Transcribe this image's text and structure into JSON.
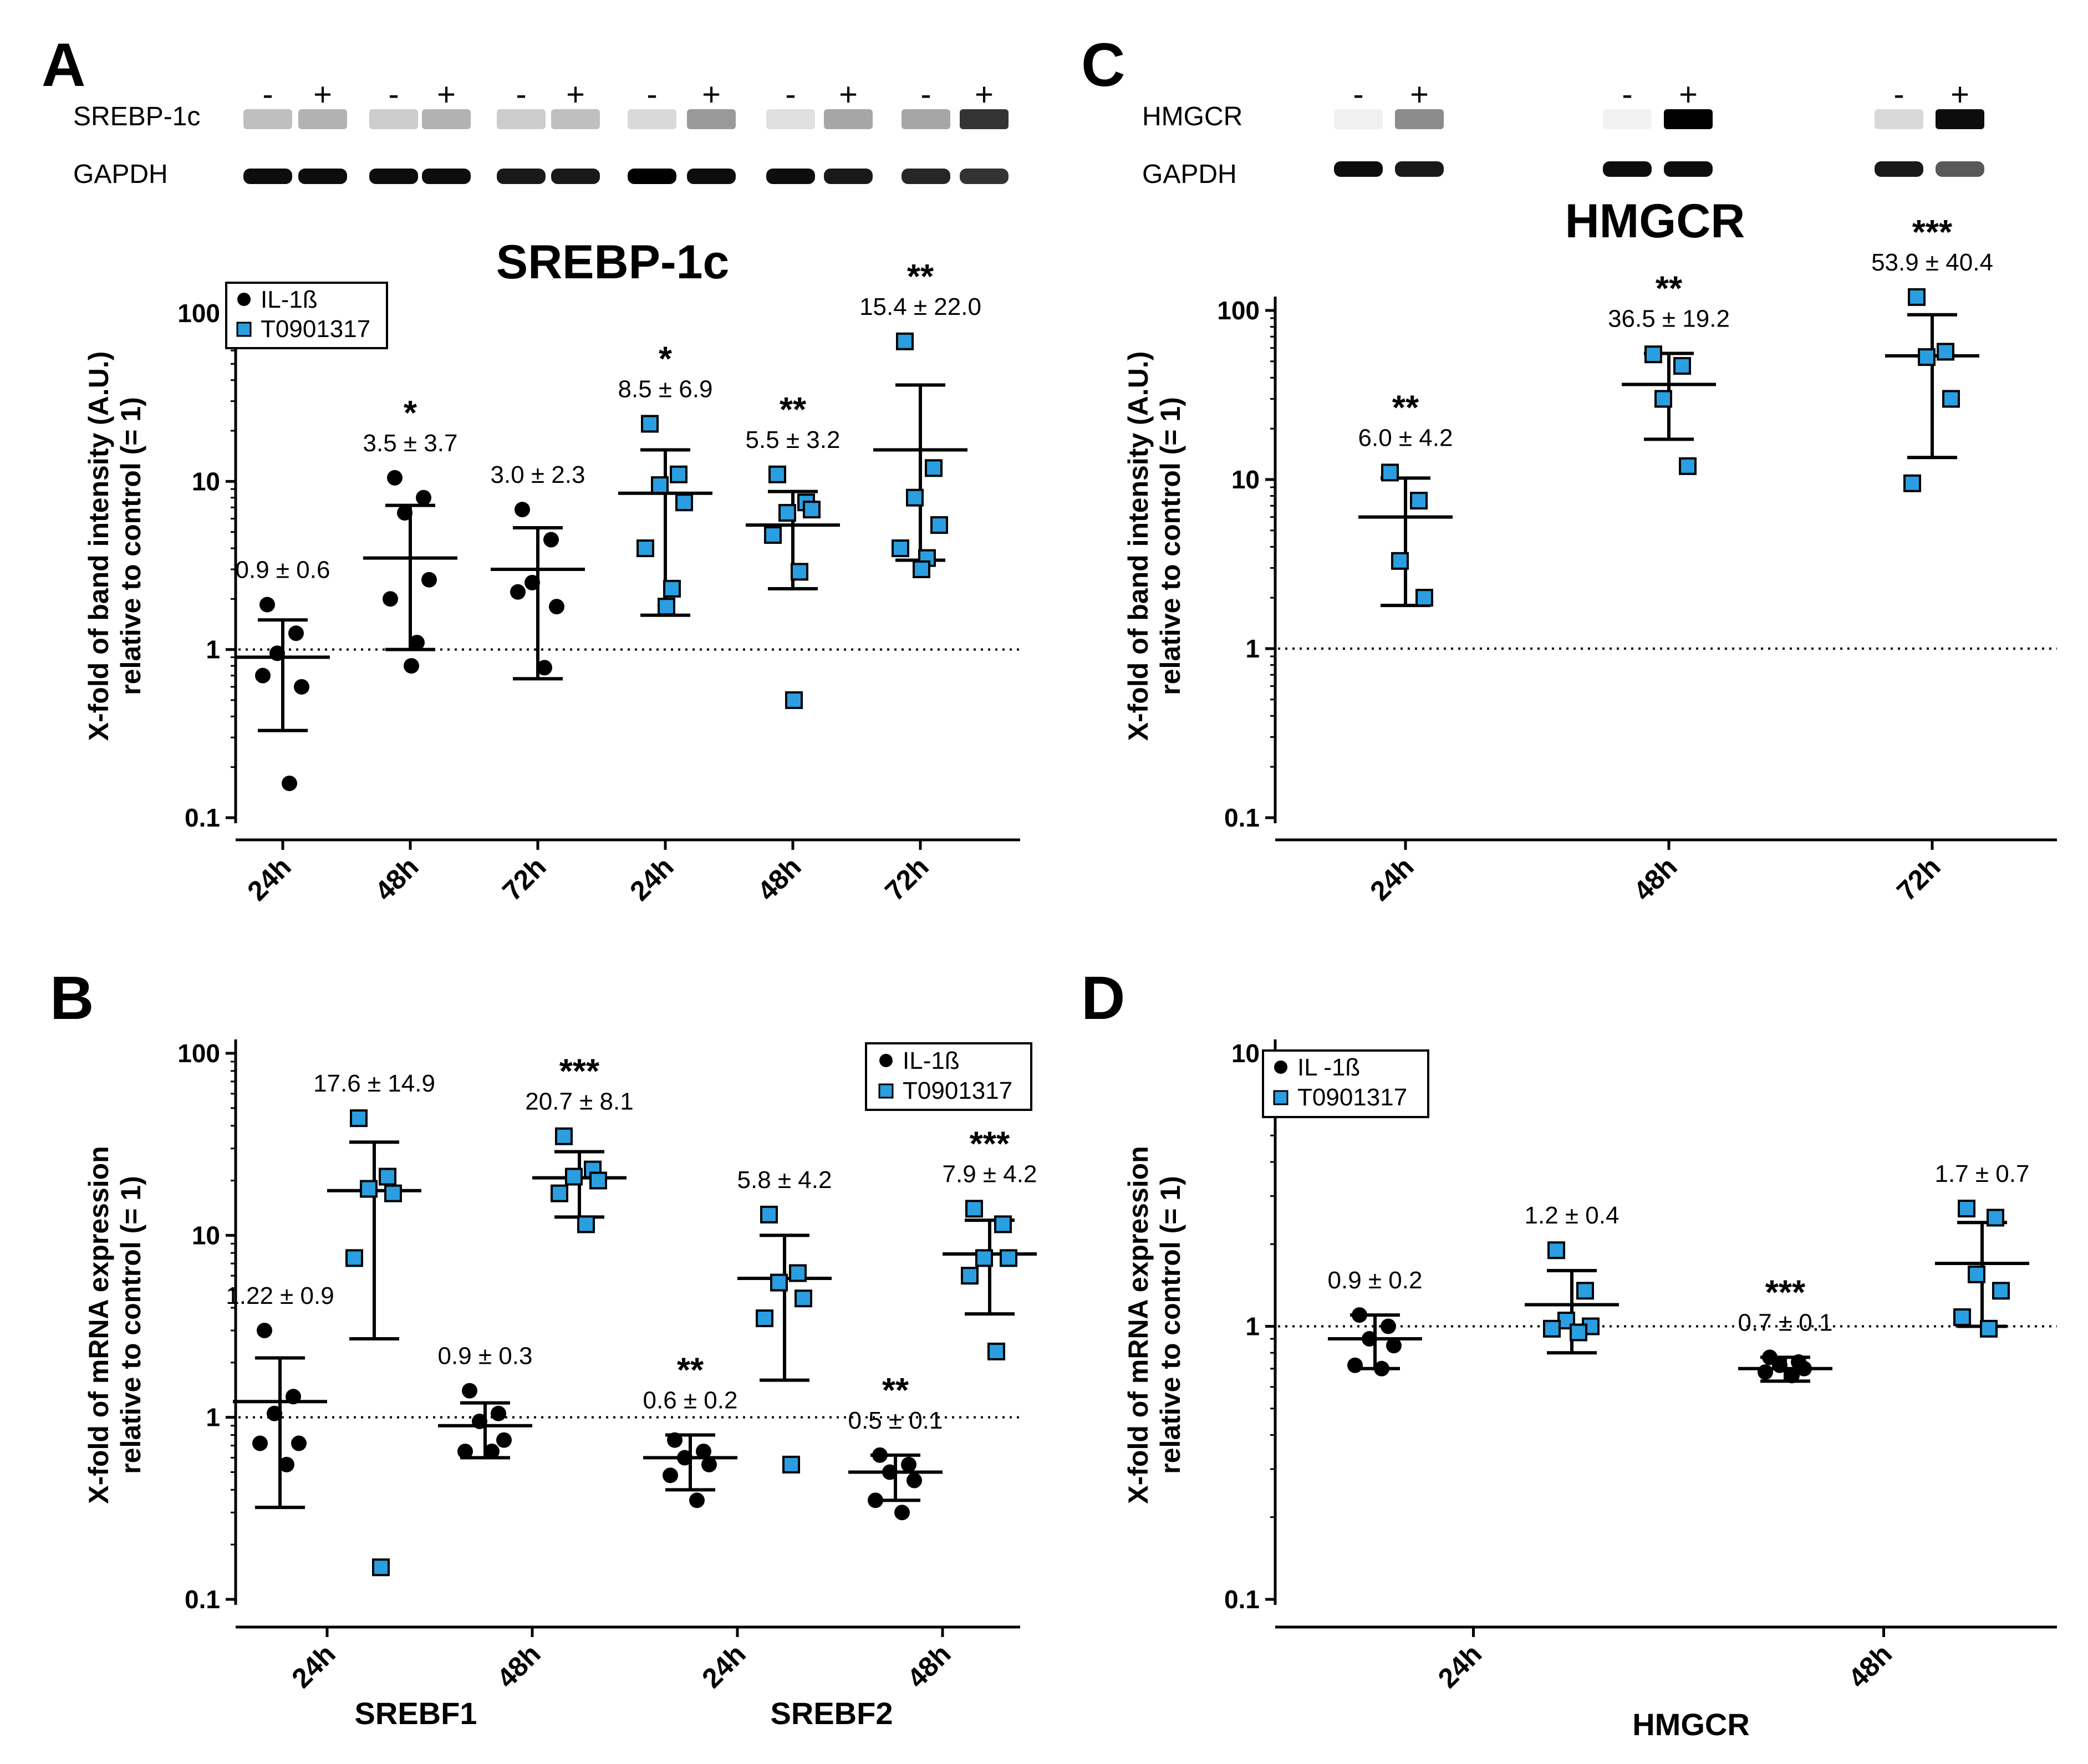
{
  "colors": {
    "il1b": "#000000",
    "t09": "#2a9ee0",
    "ink": "#000000"
  },
  "legend": {
    "il1b": "IL-1ß",
    "t09": "T0901317",
    "il1b_d": "IL -1ß"
  },
  "panels": {
    "A": "A",
    "B": "B",
    "C": "C",
    "D": "D"
  },
  "blotA": {
    "target": "SREBP-1c",
    "loading": "GAPDH",
    "lane_marks": [
      "-",
      "+",
      "-",
      "+",
      "-",
      "+",
      "-",
      "+",
      "-",
      "+",
      "-",
      "+"
    ]
  },
  "blotC": {
    "target": "HMGCR",
    "loading": "GAPDH",
    "lane_marks": [
      "-",
      "+",
      "-",
      "+",
      "-",
      "+"
    ]
  },
  "chart_data": [
    {
      "panel": "A",
      "type": "scatter",
      "title": "SREBP-1c",
      "ylabel_line1": "X-fold of band intensity (A.U.)",
      "ylabel_line2": "relative to control (= 1)",
      "yscale": "log",
      "ylim": [
        0.1,
        100
      ],
      "yticks": [
        "0.1",
        "1",
        "10",
        "100"
      ],
      "reference_line": 1,
      "legend_position": "top-left",
      "categories": [
        "24h",
        "48h",
        "72h",
        "24h",
        "48h",
        "72h"
      ],
      "groups": [
        {
          "name": "IL-1ß",
          "series": "il1b",
          "x": 0,
          "points": [
            1.85,
            1.25,
            0.95,
            0.6,
            0.7,
            0.16
          ],
          "mean": 0.9,
          "sd_low": 0.33,
          "sd_high": 1.5,
          "annotation": "0.9 ± 0.6",
          "stars": ""
        },
        {
          "name": "IL-1ß",
          "series": "il1b",
          "x": 1,
          "points": [
            10.5,
            8.0,
            6.5,
            2.6,
            2.0,
            1.1,
            0.8
          ],
          "mean": 3.5,
          "sd_low": 1.0,
          "sd_high": 7.2,
          "annotation": "3.5 ± 3.7",
          "stars": "*"
        },
        {
          "name": "IL-1ß",
          "series": "il1b",
          "x": 2,
          "points": [
            6.8,
            4.5,
            2.5,
            1.8,
            2.2,
            0.78
          ],
          "mean": 3.0,
          "sd_low": 0.67,
          "sd_high": 5.3,
          "annotation": "3.0 ± 2.3",
          "stars": ""
        },
        {
          "name": "T0901317",
          "series": "t09",
          "x": 3,
          "points": [
            22,
            11,
            9.5,
            7.5,
            4.0,
            2.3,
            1.8
          ],
          "mean": 8.5,
          "sd_low": 1.6,
          "sd_high": 15.4,
          "annotation": "8.5 ± 6.9",
          "stars": "*"
        },
        {
          "name": "T0901317",
          "series": "t09",
          "x": 4,
          "points": [
            11,
            7.5,
            6.5,
            6.8,
            4.8,
            2.9,
            0.5
          ],
          "mean": 5.5,
          "sd_low": 2.3,
          "sd_high": 8.7,
          "annotation": "5.5 ± 3.2",
          "stars": "**"
        },
        {
          "name": "T0901317",
          "series": "t09",
          "x": 5,
          "points": [
            68,
            12,
            8.0,
            5.5,
            4.0,
            3.5,
            3.0
          ],
          "mean": 15.4,
          "sd_low": 3.4,
          "sd_high": 37.4,
          "annotation": "15.4 ± 22.0",
          "stars": "**"
        }
      ]
    },
    {
      "panel": "B",
      "type": "scatter",
      "ylabel_line1": "X-fold of mRNA expression",
      "ylabel_line2": "relative to control (= 1)",
      "yscale": "log",
      "ylim": [
        0.1,
        100
      ],
      "yticks": [
        "0.1",
        "1",
        "10",
        "100"
      ],
      "reference_line": 1,
      "legend_position": "top-right",
      "categories": [
        "24h",
        "48h",
        "24h",
        "48h"
      ],
      "category_groups": [
        "SREBF1",
        "SREBF2"
      ],
      "groups": [
        {
          "name": "IL-1ß",
          "series": "il1b",
          "x": 0,
          "points": [
            3.0,
            1.3,
            1.05,
            0.72,
            0.72,
            0.55
          ],
          "mean": 1.22,
          "sd_low": 0.32,
          "sd_high": 2.12,
          "annotation": "1.22 ± 0.9",
          "stars": ""
        },
        {
          "name": "T0901317",
          "series": "t09",
          "x": 0.5,
          "points": [
            44,
            21,
            18,
            17,
            7.5,
            0.15
          ],
          "mean": 17.6,
          "sd_low": 2.7,
          "sd_high": 32.5,
          "annotation": "17.6 ± 14.9",
          "stars": ""
        },
        {
          "name": "IL-1ß",
          "series": "il1b",
          "x": 1,
          "points": [
            1.4,
            1.05,
            0.95,
            0.75,
            0.65,
            0.65
          ],
          "mean": 0.9,
          "sd_low": 0.6,
          "sd_high": 1.2,
          "annotation": "0.9 ± 0.3",
          "stars": ""
        },
        {
          "name": "T0901317",
          "series": "t09",
          "x": 1.5,
          "points": [
            35,
            23,
            21,
            20,
            17,
            11.5
          ],
          "mean": 20.7,
          "sd_low": 12.6,
          "sd_high": 28.8,
          "annotation": "20.7 ± 8.1",
          "stars": "***"
        },
        {
          "name": "IL-1ß",
          "series": "il1b",
          "x": 2,
          "points": [
            0.75,
            0.65,
            0.6,
            0.55,
            0.48,
            0.35
          ],
          "mean": 0.6,
          "sd_low": 0.4,
          "sd_high": 0.8,
          "annotation": "0.6 ± 0.2",
          "stars": "**"
        },
        {
          "name": "T0901317",
          "series": "t09",
          "x": 2.5,
          "points": [
            13,
            6.2,
            5.5,
            4.5,
            3.5,
            0.55
          ],
          "mean": 5.8,
          "sd_low": 1.6,
          "sd_high": 10.0,
          "annotation": "5.8 ± 4.2",
          "stars": ""
        },
        {
          "name": "IL-1ß",
          "series": "il1b",
          "x": 3,
          "points": [
            0.62,
            0.55,
            0.5,
            0.45,
            0.35,
            0.3
          ],
          "mean": 0.5,
          "sd_low": 0.35,
          "sd_high": 0.62,
          "annotation": "0.5 ± 0.1",
          "stars": "**"
        },
        {
          "name": "T0901317",
          "series": "t09",
          "x": 3.5,
          "points": [
            14,
            11.5,
            7.5,
            7.5,
            6.0,
            2.3
          ],
          "mean": 7.9,
          "sd_low": 3.7,
          "sd_high": 12.1,
          "annotation": "7.9 ± 4.2",
          "stars": "***"
        }
      ]
    },
    {
      "panel": "C",
      "type": "scatter",
      "title": "HMGCR",
      "ylabel_line1": "X-fold of band intensity (A.U.)",
      "ylabel_line2": "relative to control (= 1)",
      "yscale": "log",
      "ylim": [
        0.1,
        100
      ],
      "yticks": [
        "0.1",
        "1",
        "10",
        "100"
      ],
      "reference_line": 1,
      "categories": [
        "24h",
        "48h",
        "72h"
      ],
      "groups": [
        {
          "name": "T0901317",
          "series": "t09",
          "x": 0,
          "points": [
            11,
            7.5,
            3.3,
            2.0
          ],
          "mean": 6.0,
          "sd_low": 1.8,
          "sd_high": 10.2,
          "annotation": "6.0 ± 4.2",
          "stars": "**"
        },
        {
          "name": "T0901317",
          "series": "t09",
          "x": 1,
          "points": [
            55,
            47,
            30,
            12
          ],
          "mean": 36.5,
          "sd_low": 17.3,
          "sd_high": 55.7,
          "annotation": "36.5 ± 19.2",
          "stars": "**"
        },
        {
          "name": "T0901317",
          "series": "t09",
          "x": 2,
          "points": [
            120,
            57,
            53,
            30,
            9.5
          ],
          "mean": 53.9,
          "sd_low": 13.5,
          "sd_high": 94.3,
          "annotation": "53.9 ± 40.4",
          "stars": "***"
        }
      ]
    },
    {
      "panel": "D",
      "type": "scatter",
      "ylabel_line1": "X-fold of mRNA expression",
      "ylabel_line2": "relative to control (= 1)",
      "yscale": "log",
      "ylim": [
        0.1,
        10
      ],
      "yticks": [
        "0.1",
        "1",
        "10"
      ],
      "reference_line": 1,
      "legend_position": "top-left",
      "categories": [
        "24h",
        "48h"
      ],
      "category_groups": [
        "HMGCR"
      ],
      "groups": [
        {
          "name": "IL -1ß",
          "series": "il1b",
          "x": 0,
          "points": [
            1.1,
            1.0,
            0.9,
            0.85,
            0.72,
            0.7
          ],
          "mean": 0.9,
          "sd_low": 0.7,
          "sd_high": 1.1,
          "annotation": "0.9 ± 0.2",
          "stars": ""
        },
        {
          "name": "T0901317",
          "series": "t09",
          "x": 0.5,
          "points": [
            1.9,
            1.35,
            1.05,
            1.0,
            0.98,
            0.95
          ],
          "mean": 1.2,
          "sd_low": 0.8,
          "sd_high": 1.6,
          "annotation": "1.2 ± 0.4",
          "stars": ""
        },
        {
          "name": "IL -1ß",
          "series": "il1b",
          "x": 1,
          "points": [
            0.77,
            0.74,
            0.72,
            0.7,
            0.68,
            0.66
          ],
          "mean": 0.7,
          "sd_low": 0.63,
          "sd_high": 0.77,
          "annotation": "0.7 ± 0.1",
          "stars": "***"
        },
        {
          "name": "T0901317",
          "series": "t09",
          "x": 1.5,
          "points": [
            2.7,
            2.5,
            1.55,
            1.35,
            1.08,
            0.98
          ],
          "mean": 1.7,
          "sd_low": 1.0,
          "sd_high": 2.4,
          "annotation": "1.7 ± 0.7",
          "stars": ""
        }
      ]
    }
  ]
}
